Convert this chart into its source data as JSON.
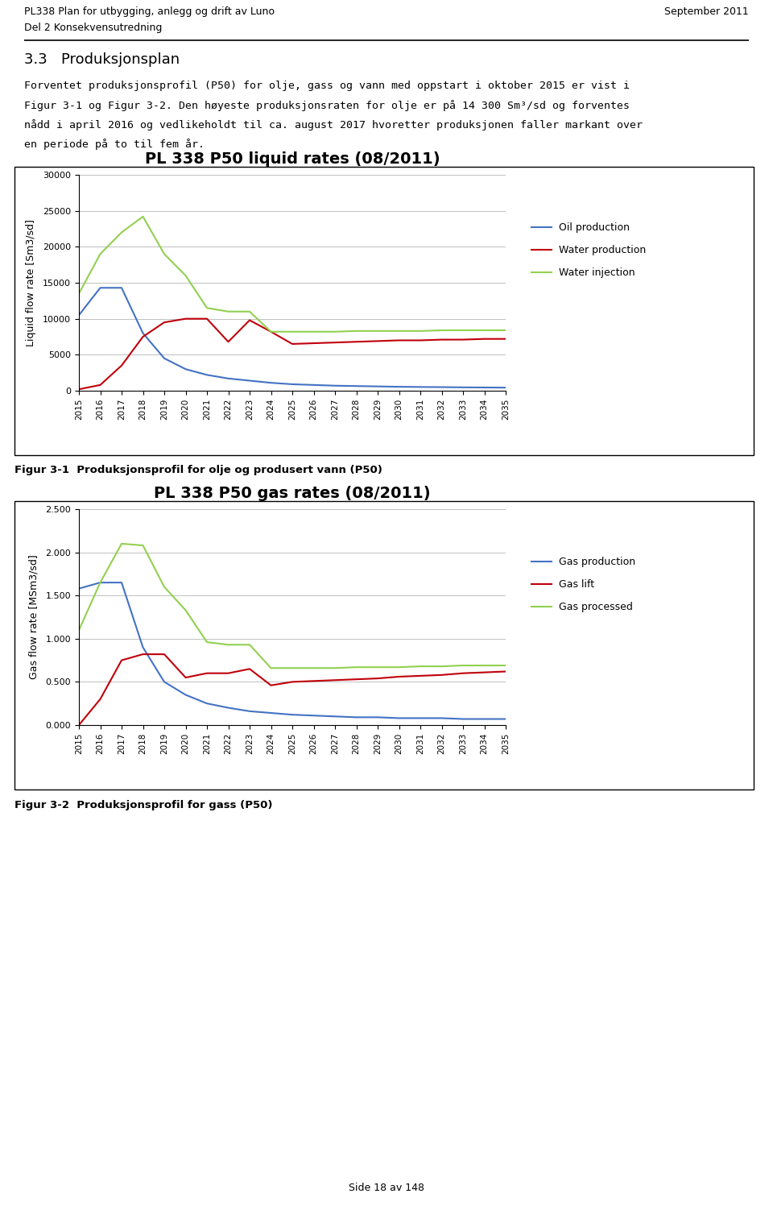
{
  "page_title_line1": "PL338 Plan for utbygging, anlegg og drift av Luno",
  "page_title_line2": "Del 2 Konsekvensutredning",
  "page_date": "September 2011",
  "section_title": "3.3   Produksjonsplan",
  "body_text_lines": [
    "Forventet produksjonsprofil (P50) for olje, gass og vann med oppstart i oktober 2015 er vist i",
    "Figur 3-1 og Figur 3-2. Den høyeste produksjonsraten for olje er på 14 300 Sm³/sd og forventes",
    "nådd i april 2016 og vedlikeholdt til ca. august 2017 hvoretter produksjonen faller markant over",
    "en periode på to til fem år."
  ],
  "chart1_title": "PL 338 P50 liquid rates (08/2011)",
  "chart1_ylabel": "Liquid flow rate [Sm3/sd]",
  "chart1_yticks": [
    0,
    5000,
    10000,
    15000,
    20000,
    25000,
    30000
  ],
  "chart1_ylim": [
    0,
    30000
  ],
  "chart1_legend": [
    "Oil production",
    "Water production",
    "Water injection"
  ],
  "chart1_colors": [
    "#4472C4",
    "#C0000A",
    "#92D050"
  ],
  "chart1_caption": "Figur 3-1  Produksjonsprofil for olje og produsert vann (P50)",
  "chart2_title": "PL 338 P50 gas rates (08/2011)",
  "chart2_ylabel": "Gas flow rate [MSm3/sd]",
  "chart2_yticks": [
    0.0,
    0.5,
    1.0,
    1.5,
    2.0,
    2.5
  ],
  "chart2_ylim": [
    0.0,
    2.5
  ],
  "chart2_legend": [
    "Gas production",
    "Gas lift",
    "Gas processed"
  ],
  "chart2_colors": [
    "#4472C4",
    "#C0000A",
    "#92D050"
  ],
  "chart2_caption": "Figur 3-2  Produksjonsprofil for gass (P50)",
  "page_footer": "Side 18 av 148",
  "x_years": [
    2015,
    2016,
    2017,
    2018,
    2019,
    2020,
    2021,
    2022,
    2023,
    2024,
    2025,
    2026,
    2027,
    2028,
    2029,
    2030,
    2031,
    2032,
    2033,
    2034,
    2035
  ],
  "oil_production": [
    10500,
    14300,
    14300,
    8000,
    4500,
    3000,
    2200,
    1700,
    1400,
    1100,
    900,
    800,
    700,
    650,
    600,
    550,
    520,
    500,
    470,
    450,
    430
  ],
  "water_production": [
    200,
    800,
    3500,
    7500,
    9500,
    10000,
    10000,
    6800,
    9800,
    8200,
    6500,
    6600,
    6700,
    6800,
    6900,
    7000,
    7000,
    7100,
    7100,
    7200,
    7200
  ],
  "water_injection": [
    13500,
    19000,
    22000,
    24200,
    19000,
    16000,
    11500,
    11000,
    11000,
    8200,
    8200,
    8200,
    8200,
    8300,
    8300,
    8300,
    8300,
    8400,
    8400,
    8400,
    8400
  ],
  "gas_production": [
    1.58,
    1.65,
    1.65,
    0.9,
    0.5,
    0.35,
    0.25,
    0.2,
    0.16,
    0.14,
    0.12,
    0.11,
    0.1,
    0.09,
    0.09,
    0.08,
    0.08,
    0.08,
    0.07,
    0.07,
    0.07
  ],
  "gas_lift": [
    0.0,
    0.3,
    0.75,
    0.82,
    0.82,
    0.55,
    0.6,
    0.6,
    0.65,
    0.46,
    0.5,
    0.51,
    0.52,
    0.53,
    0.54,
    0.56,
    0.57,
    0.58,
    0.6,
    0.61,
    0.62
  ],
  "gas_processed": [
    1.1,
    1.65,
    2.1,
    2.08,
    1.6,
    1.33,
    0.96,
    0.93,
    0.93,
    0.66,
    0.66,
    0.66,
    0.66,
    0.67,
    0.67,
    0.67,
    0.68,
    0.68,
    0.69,
    0.69,
    0.69
  ]
}
